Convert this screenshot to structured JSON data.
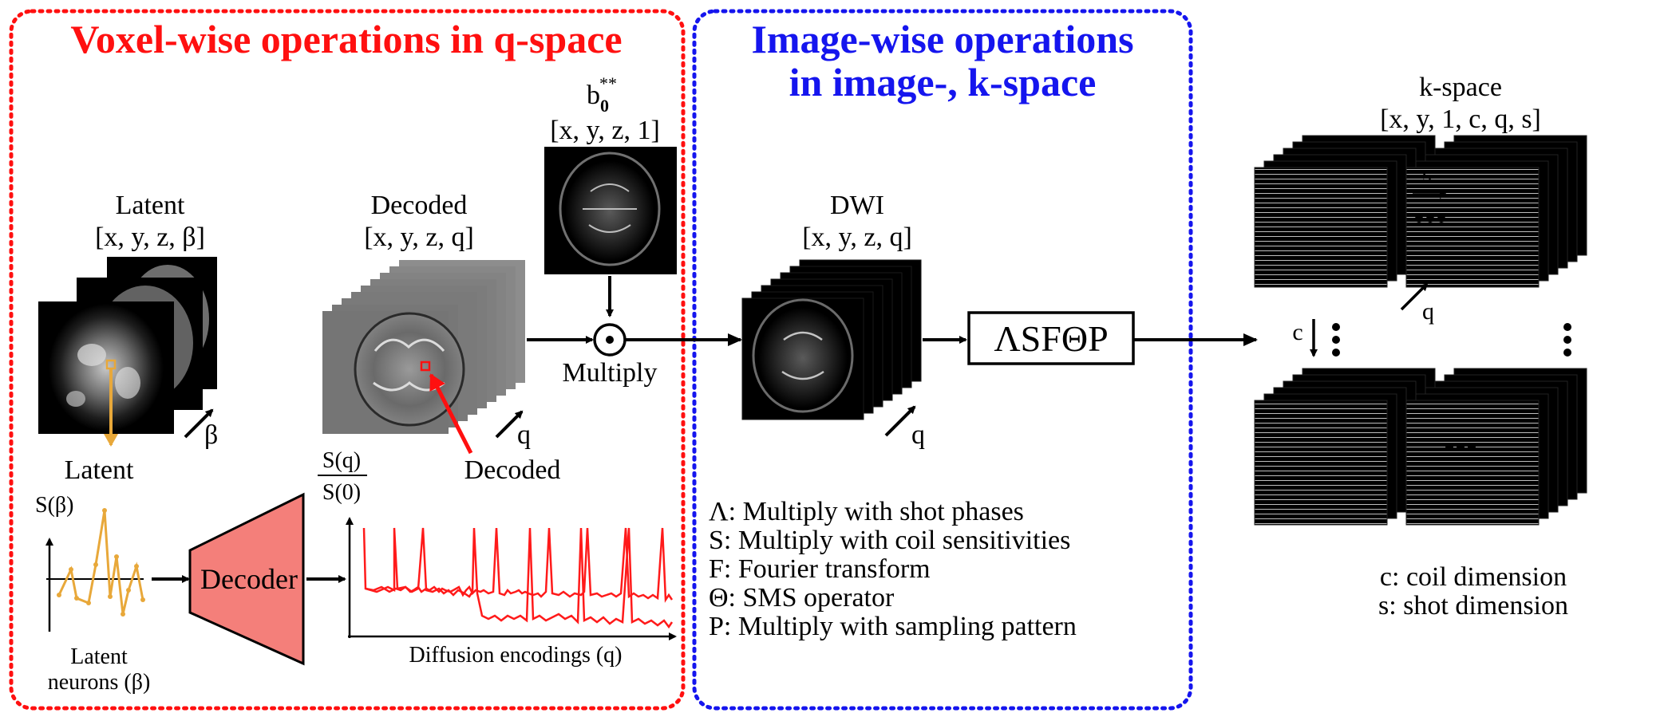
{
  "panels": {
    "voxel_title": "Voxel-wise operations in q-space",
    "image_title_line1": "Image-wise operations",
    "image_title_line2": "in image-, k-space"
  },
  "colors": {
    "red": "#ff1010",
    "blue": "#1515ee",
    "orange": "#e8a83a",
    "decoder_fill": "#f47f7a",
    "plot_red": "#ff1a1a"
  },
  "latent_stack": {
    "title": "Latent",
    "dims": "[x, y, z, β]",
    "axis": "β"
  },
  "decoded_stack": {
    "title": "Decoded",
    "dims": "[x, y, z, q]",
    "axis": "q",
    "pointer_label": "Decoded"
  },
  "b0": {
    "title_base": "b",
    "title_sub": "0",
    "title_sup": "**",
    "dims": "[x, y, z, 1]"
  },
  "multiply": {
    "symbol": "⊙",
    "label": "Multiply"
  },
  "dwi_stack": {
    "title": "DWI",
    "dims": "[x, y, z, q]",
    "axis": "q"
  },
  "operator": {
    "label": "ΛSFΘP"
  },
  "latent_plot": {
    "pointer_label": "Latent",
    "ylabel": "S(β)",
    "xlabel_line1": "Latent",
    "xlabel_line2": "neurons (β)"
  },
  "decoder": {
    "label": "Decoder"
  },
  "signal_plot": {
    "ylabel_num": "S(q)",
    "ylabel_den": "S(0)",
    "xlabel": "Diffusion encodings (q)"
  },
  "legend": [
    "Λ: Multiply with shot phases",
    "S: Multiply with coil sensitivities",
    "F: Fourier transform",
    "Θ: SMS operator",
    "P: Multiply with sampling pattern"
  ],
  "kspace": {
    "title": "k-space",
    "dims": "[x, y, 1, c, q, s]",
    "s_label": "s",
    "c_label": "c",
    "q_label": "q",
    "legend_c": "c: coil dimension",
    "legend_s": "s: shot dimension"
  }
}
